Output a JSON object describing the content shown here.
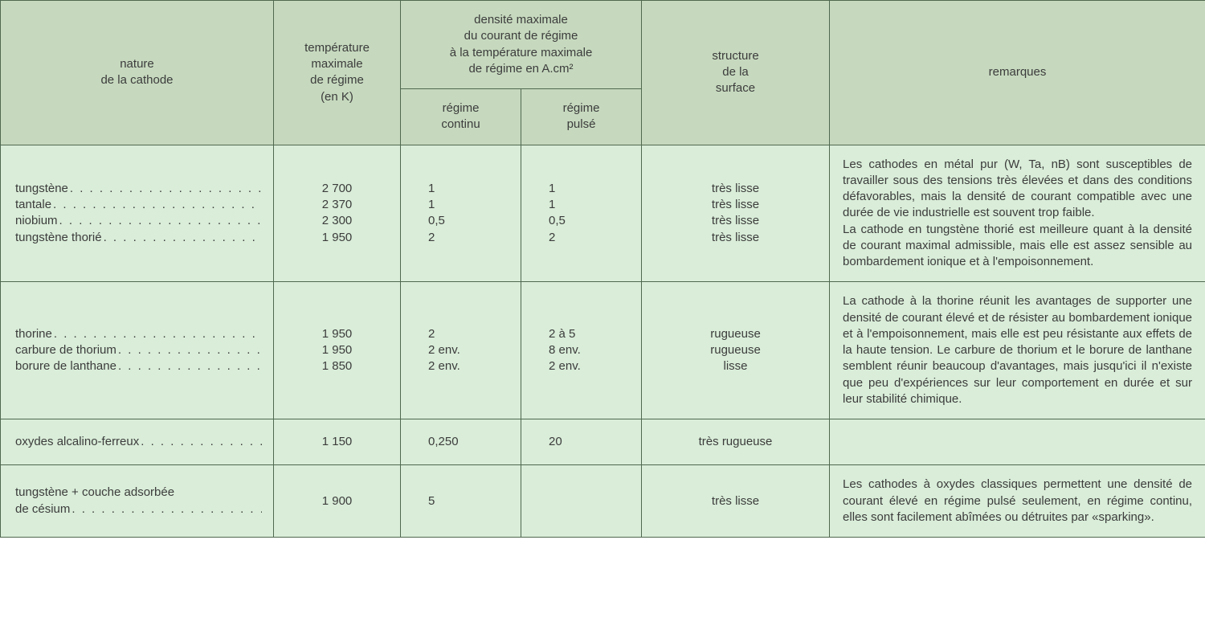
{
  "layout": {
    "widths": {
      "nature": 340,
      "temp": 158,
      "regime_continu": 150,
      "regime_pulse": 150,
      "structure": 234,
      "remarques": 468
    },
    "colors": {
      "header_bg": "#c6d9be",
      "body_bg": "#d9edd8",
      "border": "#506850",
      "text": "#3c3c3c"
    },
    "font_size": 15
  },
  "headers": {
    "nature": "nature\nde la cathode",
    "temp": "température\nmaximale\nde régime\n(en K)",
    "densite_top": "densité maximale\ndu courant de régime\nà la température maximale\nde régime en A.cm²",
    "regime_continu": "régime\ncontinu",
    "regime_pulse": "régime\npulsé",
    "structure": "structure\nde la\nsurface",
    "remarques": "remarques"
  },
  "groups": [
    {
      "rows": [
        {
          "nature": "tungstène",
          "temp": "2 700",
          "rc": "1",
          "rp": "1",
          "struct": "très lisse"
        },
        {
          "nature": "tantale",
          "temp": "2 370",
          "rc": "1",
          "rp": "1",
          "struct": "très lisse"
        },
        {
          "nature": "niobium",
          "temp": "2 300",
          "rc": "0,5",
          "rp": "0,5",
          "struct": "très lisse"
        },
        {
          "nature": "tungstène thorié",
          "temp": "1 950",
          "rc": "2",
          "rp": "2",
          "struct": "très lisse"
        }
      ],
      "remark": "Les cathodes en métal pur (W, Ta, nB) sont susceptibles de travailler sous des tensions très élevées et dans des conditions défavorables, mais la densité de courant compatible avec une durée de vie industrielle est souvent trop faible.\nLa cathode en tungstène thorié est meilleure quant à la densité de courant maximal admissible, mais elle est assez sensible au bombardement ionique et à l'empoisonnement."
    },
    {
      "rows": [
        {
          "nature": "thorine",
          "temp": "1 950",
          "rc": "2",
          "rp": "2 à 5",
          "struct": "rugueuse"
        },
        {
          "nature": "carbure de thorium",
          "temp": "1 950",
          "rc": "2 env.",
          "rp": "8 env.",
          "struct": "rugueuse"
        },
        {
          "nature": "borure de lanthane",
          "temp": "1 850",
          "rc": "2 env.",
          "rp": "2 env.",
          "struct": "lisse"
        }
      ],
      "remark": "La cathode à la thorine réunit les avantages de supporter une densité de courant élevé et de résister au bombardement ionique et à l'empoisonnement, mais elle est peu résistante aux effets de la haute tension. Le carbure de thorium et le borure de lanthane semblent réunir beaucoup d'avantages, mais jusqu'ici il n'existe que peu d'expériences sur leur comportement en durée et sur leur stabilité chimique."
    },
    {
      "rows": [
        {
          "nature": "oxydes alcalino-ferreux",
          "temp": "1 150",
          "rc": "0,250",
          "rp": "20",
          "struct": "très rugueuse"
        }
      ],
      "remark": ""
    },
    {
      "rows": [
        {
          "nature": "tungstène + couche adsorbée de césium",
          "nature2": true,
          "temp": "1 900",
          "rc": "5",
          "rp": "",
          "struct": "très lisse"
        }
      ],
      "remark": "Les cathodes à oxydes classiques permettent une densité de courant élevé en régime pulsé seulement, en régime continu, elles sont facilement abîmées ou détruites par «sparking»."
    }
  ]
}
